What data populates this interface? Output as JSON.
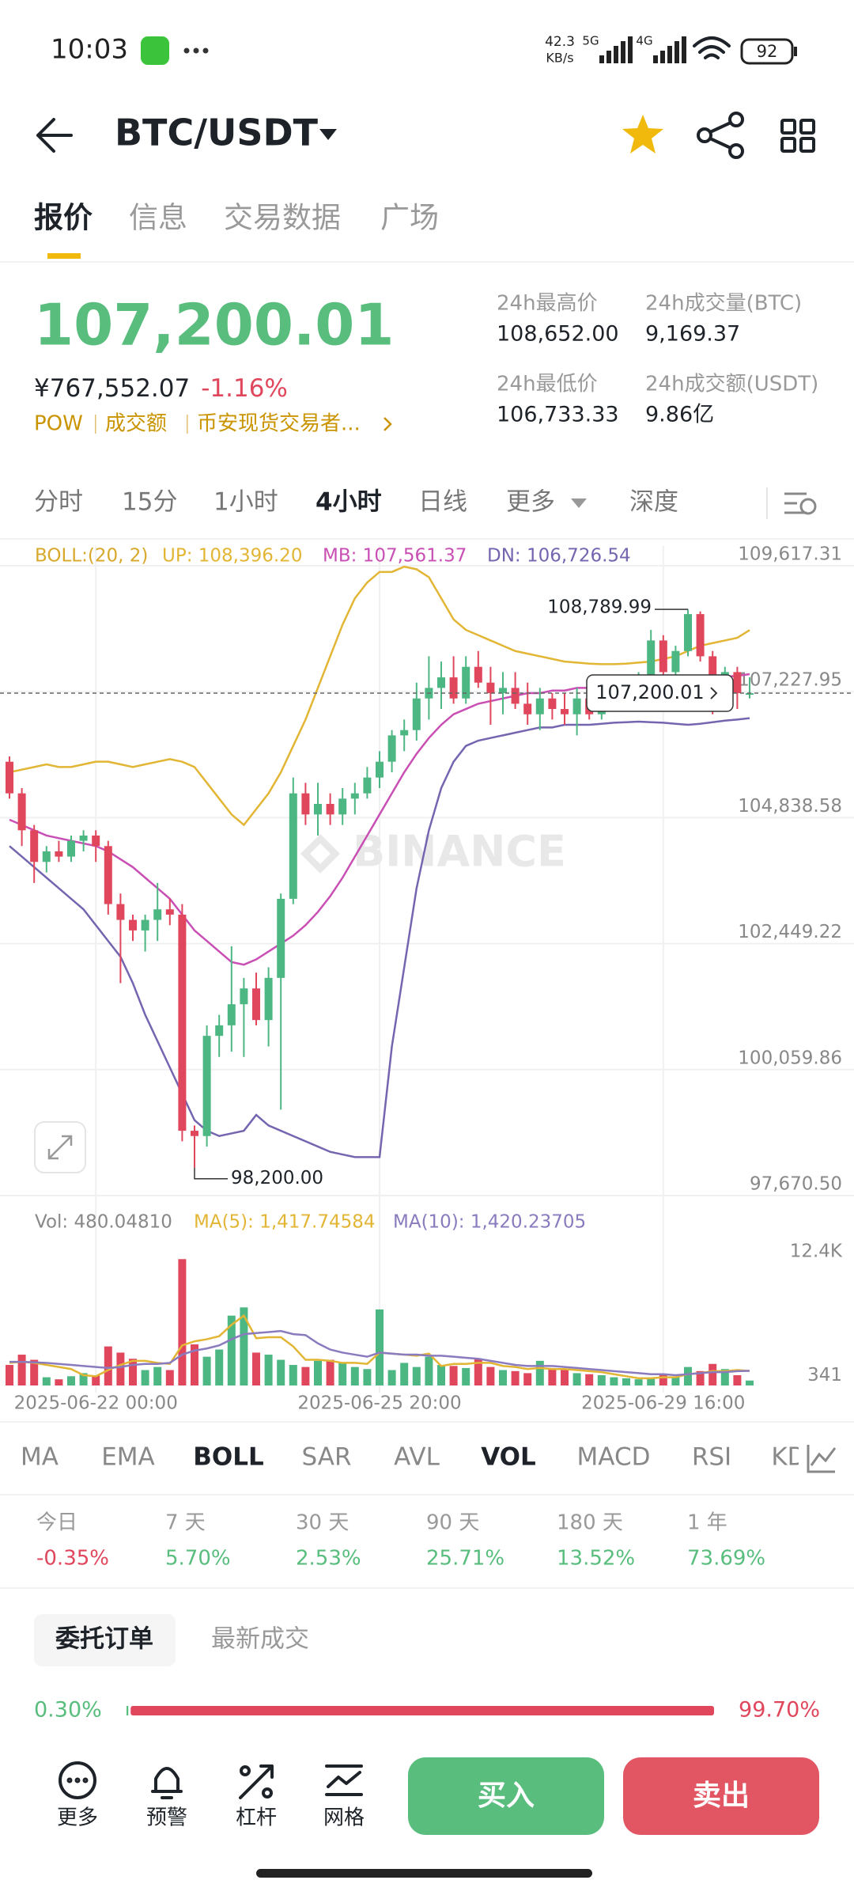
{
  "status_bar": {
    "time": "10:03",
    "network_speed": [
      "42.3",
      "KB/s"
    ],
    "signal": [
      "5G",
      "4G"
    ],
    "battery": "92"
  },
  "header": {
    "title": "BTC/USDT"
  },
  "tabs": [
    "报价",
    "信息",
    "交易数据",
    "广场"
  ],
  "ticker": {
    "price": "107,200.01",
    "price_cny": "¥767,552.07",
    "change": "-1.16%",
    "tags": [
      "POW",
      "成交额",
      "币安现货交易者..."
    ]
  },
  "stats": [
    {
      "label": "24h最高价",
      "value": "108,652.00"
    },
    {
      "label": "24h成交量(BTC)",
      "value": "9,169.37"
    },
    {
      "label": "24h最低价",
      "value": "106,733.33"
    },
    {
      "label": "24h成交额(USDT)",
      "value": "9.86亿"
    }
  ],
  "intervals": [
    "分时",
    "15分",
    "1小时",
    "4小时",
    "日线",
    "更多",
    "深度"
  ],
  "chart_data": {
    "type": "candlestick",
    "categories": [
      null,
      null,
      null,
      null,
      null,
      null,
      null,
      "2025-06-22 00:00",
      null,
      null,
      null,
      null,
      null,
      null,
      null,
      null,
      null,
      null,
      null,
      null,
      null,
      null,
      null,
      null,
      null,
      null,
      null,
      null,
      null,
      null,
      "2025-06-25 20:00",
      null,
      null,
      null,
      null,
      null,
      null,
      null,
      null,
      null,
      null,
      null,
      null,
      null,
      null,
      null,
      null,
      null,
      null,
      null,
      null,
      null,
      null,
      "2025-06-29 16:00",
      null,
      null,
      null,
      null,
      null,
      null,
      null
    ],
    "open": [
      105900,
      105300,
      104600,
      104000,
      104200,
      104100,
      104400,
      104500,
      104300,
      103200,
      102900,
      102700,
      102900,
      103100,
      103000,
      98900,
      98800,
      100700,
      100900,
      101300,
      101600,
      101000,
      101800,
      103300,
      105300,
      104900,
      105100,
      104900,
      105200,
      105300,
      105600,
      105900,
      106400,
      106500,
      107100,
      107300,
      107500,
      107100,
      107700,
      107400,
      107200,
      107300,
      107000,
      106800,
      107100,
      106900,
      106800,
      107100,
      106800,
      107200,
      107300,
      107400,
      107500,
      108200,
      107600,
      108000,
      108700,
      107900,
      107400,
      107600,
      107200
    ],
    "high": [
      106000,
      105400,
      104700,
      104300,
      104400,
      104500,
      104600,
      104600,
      104400,
      103400,
      103000,
      103000,
      103600,
      103300,
      103200,
      99000,
      100900,
      101100,
      102400,
      101800,
      101900,
      102000,
      103400,
      105600,
      105500,
      105500,
      105300,
      105400,
      105500,
      105800,
      106100,
      106500,
      106700,
      107400,
      107900,
      107800,
      107900,
      107900,
      108000,
      107700,
      107600,
      107600,
      107400,
      107300,
      107200,
      107200,
      107300,
      107400,
      107300,
      107500,
      107500,
      107600,
      108400,
      108300,
      108100,
      108789.99,
      108750,
      108000,
      107700,
      107700,
      107500
    ],
    "low": [
      105200,
      104300,
      103600,
      103800,
      104000,
      104000,
      104200,
      104000,
      103000,
      101700,
      102500,
      102300,
      102500,
      102800,
      98700,
      98200,
      98600,
      100300,
      100400,
      100300,
      100900,
      100500,
      99300,
      103200,
      104700,
      104500,
      104700,
      104700,
      104900,
      105200,
      105400,
      105700,
      106100,
      106300,
      106700,
      106900,
      107000,
      107000,
      107300,
      106600,
      106800,
      106900,
      106600,
      106500,
      106700,
      106600,
      106400,
      106700,
      106700,
      107000,
      107100,
      107200,
      107300,
      107400,
      107300,
      107900,
      107800,
      106800,
      107000,
      106900,
      107100
    ],
    "close": [
      105300,
      104600,
      104000,
      104200,
      104100,
      104400,
      104500,
      104300,
      103200,
      102900,
      102700,
      102900,
      103100,
      103000,
      98900,
      98800,
      100700,
      100900,
      101300,
      101600,
      101000,
      101800,
      103300,
      105300,
      104900,
      105100,
      104900,
      105200,
      105300,
      105600,
      105900,
      106400,
      106500,
      107100,
      107300,
      107500,
      107100,
      107700,
      107400,
      107200,
      107300,
      107000,
      106800,
      107100,
      106900,
      106800,
      107100,
      106800,
      107200,
      107300,
      107400,
      107500,
      108200,
      107600,
      108000,
      108700,
      107900,
      107400,
      107600,
      107200,
      107200.01
    ],
    "colors": {
      "up": "#4cb783",
      "down": "#e0475c"
    },
    "ylim": [
      97670.5,
      109617.31
    ],
    "yticks": [
      {
        "value": 97670.5,
        "label": "97,670.50"
      },
      {
        "value": 100059.86,
        "label": "100,059.86"
      },
      {
        "value": 102449.22,
        "label": "102,449.22"
      },
      {
        "value": 104838.58,
        "label": "104,838.58"
      },
      {
        "value": 107227.95,
        "label": "107,227.95"
      },
      {
        "value": 109617.31,
        "label": "109,617.31"
      }
    ],
    "grid": true,
    "current_price": {
      "value": 107200.01,
      "label": "107,200.01"
    },
    "max_label": {
      "value": 108789.99,
      "label": "108,789.99"
    },
    "min_label": {
      "value": 98200.0,
      "label": "98,200.00"
    },
    "watermark": "BINANCE",
    "indicator": {
      "name": "BOLL:(20, 2)",
      "series": [
        {
          "name": "UP: 108,396.20",
          "color": "#e2b634",
          "values": [
            105700,
            105750,
            105800,
            105850,
            105800,
            105800,
            105850,
            105900,
            105900,
            105850,
            105800,
            105850,
            105900,
            105950,
            105900,
            105800,
            105500,
            105200,
            104900,
            104700,
            105000,
            105300,
            105700,
            106200,
            106700,
            107300,
            107900,
            108500,
            109000,
            109300,
            109500,
            109500,
            109600,
            109550,
            109400,
            109000,
            108600,
            108400,
            108300,
            108200,
            108100,
            108000,
            107950,
            107900,
            107850,
            107800,
            107780,
            107760,
            107750,
            107750,
            107760,
            107780,
            107800,
            107850,
            107900,
            108000,
            108100,
            108150,
            108200,
            108250,
            108396.2
          ]
        },
        {
          "name": "MB: 107,561.37",
          "color": "#c94fb4",
          "values": [
            104800,
            104700,
            104600,
            104500,
            104450,
            104400,
            104350,
            104300,
            104200,
            104050,
            103900,
            103700,
            103500,
            103300,
            103000,
            102700,
            102500,
            102300,
            102100,
            102050,
            102150,
            102300,
            102450,
            102600,
            102800,
            103050,
            103350,
            103700,
            104100,
            104500,
            104900,
            105300,
            105700,
            106050,
            106350,
            106600,
            106800,
            106900,
            107000,
            107050,
            107100,
            107150,
            107200,
            107200,
            107250,
            107250,
            107300,
            107300,
            107320,
            107340,
            107350,
            107360,
            107370,
            107380,
            107400,
            107430,
            107460,
            107490,
            107510,
            107530,
            107561.37
          ]
        },
        {
          "name": "DN: 106,726.54",
          "color": "#7565b0",
          "values": [
            104300,
            104100,
            103900,
            103700,
            103500,
            103300,
            103100,
            102800,
            102500,
            102200,
            101700,
            101100,
            100600,
            100100,
            99600,
            99100,
            98900,
            98800,
            98850,
            98900,
            99200,
            99000,
            98900,
            98800,
            98700,
            98600,
            98500,
            98450,
            98400,
            98400,
            98400,
            100500,
            102000,
            103500,
            104600,
            105400,
            105900,
            106200,
            106300,
            106350,
            106400,
            106450,
            106500,
            106550,
            106550,
            106600,
            106600,
            106600,
            106620,
            106640,
            106650,
            106660,
            106650,
            106640,
            106620,
            106600,
            106620,
            106650,
            106680,
            106700,
            106726.54
          ]
        }
      ]
    },
    "volume": {
      "title": "Vol: 480.04810",
      "values": [
        2000,
        3000,
        2500,
        800,
        600,
        900,
        1200,
        1000,
        3800,
        3200,
        2600,
        1500,
        1800,
        1500,
        12300,
        4000,
        2800,
        3500,
        6800,
        7600,
        3200,
        3000,
        2500,
        2000,
        1800,
        2400,
        2500,
        2200,
        1800,
        1600,
        7400,
        1500,
        2200,
        1800,
        2800,
        2000,
        1900,
        1700,
        2600,
        1800,
        1500,
        1400,
        1200,
        2400,
        1700,
        1500,
        1200,
        1100,
        1000,
        800,
        700,
        600,
        700,
        1000,
        800,
        1800,
        1400,
        2100,
        1600,
        1000,
        480.0481
      ],
      "ylim": [
        0,
        12400
      ],
      "yticks": [
        {
          "value": 341,
          "label": "341"
        },
        {
          "value": 12400,
          "label": "12.4K"
        }
      ],
      "series": [
        {
          "name": "MA(5): 1,417.74584",
          "color": "#e2b634",
          "values": [
            2200,
            2300,
            2200,
            2000,
            1800,
            1600,
            1000,
            900,
            1500,
            2000,
            2400,
            2400,
            2200,
            2100,
            3900,
            4300,
            4500,
            4800,
            5900,
            6800,
            4600,
            4700,
            4700,
            3800,
            2500,
            2500,
            2400,
            2200,
            2200,
            2100,
            3200,
            3100,
            3000,
            2900,
            3100,
            1900,
            2100,
            2100,
            2200,
            2200,
            1900,
            1800,
            1600,
            1700,
            1600,
            1600,
            1500,
            1400,
            1300,
            1100,
            900,
            700,
            700,
            800,
            800,
            1100,
            1200,
            1400,
            1400,
            1500,
            1417.74584
          ]
        },
        {
          "name": "MA(10): 1,420.23705",
          "color": "#8a7bbf",
          "values": [
            2300,
            2300,
            2250,
            2200,
            2100,
            2000,
            1900,
            1800,
            1700,
            1800,
            2000,
            2100,
            2100,
            2200,
            3000,
            3400,
            3600,
            3900,
            4500,
            5000,
            5100,
            5200,
            5300,
            5000,
            4900,
            4100,
            3500,
            3200,
            3000,
            2800,
            3200,
            3100,
            3000,
            3000,
            2900,
            2900,
            2800,
            2700,
            2600,
            2400,
            2200,
            2000,
            1900,
            1900,
            1900,
            1800,
            1700,
            1600,
            1500,
            1400,
            1300,
            1200,
            1100,
            1100,
            1000,
            1100,
            1200,
            1300,
            1300,
            1400,
            1420.23705
          ]
        }
      ]
    }
  },
  "indicator_tabs": [
    "MA",
    "EMA",
    "BOLL",
    "SAR",
    "AVL",
    "VOL",
    "MACD",
    "RSI",
    "KDJ"
  ],
  "performance": [
    {
      "period": "今日",
      "change": "-0.35%"
    },
    {
      "period": "7 天",
      "change": "5.70%"
    },
    {
      "period": "30 天",
      "change": "2.53%"
    },
    {
      "period": "90 天",
      "change": "25.71%"
    },
    {
      "period": "180 天",
      "change": "13.52%"
    },
    {
      "period": "1 年",
      "change": "73.69%"
    }
  ],
  "order_tabs": [
    "委托订单",
    "最新成交"
  ],
  "order_ratio": {
    "buy": {
      "value": 0.3,
      "label": "0.30%"
    },
    "sell": {
      "value": 99.7,
      "label": "99.70%"
    }
  },
  "toolbar": [
    "更多",
    "预警",
    "杠杆",
    "网格"
  ],
  "actions": {
    "buy": "买入",
    "sell": "卖出"
  }
}
